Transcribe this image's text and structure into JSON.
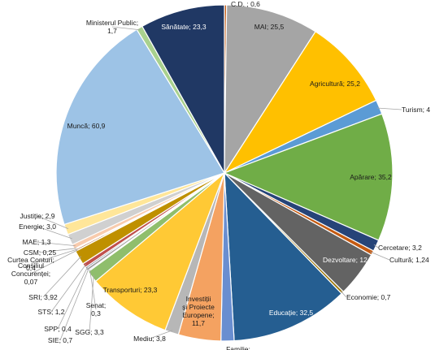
{
  "chart_data": {
    "type": "pie",
    "title": "",
    "start": "top, clockwise",
    "slices": [
      {
        "label": "C.D. ; 0,6",
        "value": 0.6,
        "color": "#c55a11"
      },
      {
        "label": "MAI; 25,5",
        "value": 25.5,
        "color": "#a5a5a5"
      },
      {
        "label": "Agricultură; 25,2",
        "value": 25.2,
        "color": "#ffc000"
      },
      {
        "label": "Turism; 4",
        "value": 4,
        "color": "#5b9bd5"
      },
      {
        "label": "Apărare; 35,2",
        "value": 35.2,
        "color": "#70ad47"
      },
      {
        "label": "Cercetare; 3,2",
        "value": 3.2,
        "color": "#264478"
      },
      {
        "label": "Cultură; 1,24",
        "value": 1.24,
        "color": "#c55a11"
      },
      {
        "label": "Dezvoltare; 12,6",
        "value": 12.6,
        "color": "#636363"
      },
      {
        "label": "Economie; 0,7",
        "value": 0.7,
        "color": "#997300"
      },
      {
        "label": "Educație; 32,5",
        "value": 32.5,
        "color": "#255e91"
      },
      {
        "label": "Familie;",
        "value": 3.6,
        "color": "#698ed0"
      },
      {
        "label": "Investiții și Proiecte Europene; 11,7",
        "value": 11.7,
        "color": "#f4a261"
      },
      {
        "label": "Mediu; 3,8",
        "value": 3.8,
        "color": "#b7b7b7"
      },
      {
        "label": "Transporturi; 23,3",
        "value": 23.3,
        "color": "#ffc935"
      },
      {
        "label": "SGG; 3,3",
        "value": 3.3,
        "color": "#8fbe6c"
      },
      {
        "label": "Senat; 0,3",
        "value": 0.3,
        "color": "#4472c4"
      },
      {
        "label": "SIE; 0,7",
        "value": 0.7,
        "color": "#a0a0a0"
      },
      {
        "label": "SPP; 0,4",
        "value": 0.4,
        "color": "#44546a"
      },
      {
        "label": "STS; 1,2",
        "value": 1.2,
        "color": "#c0504d"
      },
      {
        "label": "SRI; 3,92",
        "value": 3.92,
        "color": "#bf9000"
      },
      {
        "label": "Consiliul Concurenței; 0,07",
        "value": 0.07,
        "color": "#808080"
      },
      {
        "label": "Curtea Conturi; 0,4",
        "value": 0.4,
        "color": "#9e480e"
      },
      {
        "label": "CSM; 0,25",
        "value": 0.25,
        "color": "#3a7f3a"
      },
      {
        "label": "MAE; 1,3",
        "value": 1.3,
        "color": "#f8cbad"
      },
      {
        "label": "Energie; 3,0",
        "value": 3.0,
        "color": "#d0d0d0"
      },
      {
        "label": "Justiție; 2,9",
        "value": 2.9,
        "color": "#ffe699"
      },
      {
        "label": "Muncă; 60,9",
        "value": 60.9,
        "color": "#9dc3e6"
      },
      {
        "label": "Ministerul Public; 1,7",
        "value": 1.7,
        "color": "#a9d18e"
      },
      {
        "label": "Sănătate; 23,3",
        "value": 23.3,
        "color": "#203864"
      }
    ]
  }
}
